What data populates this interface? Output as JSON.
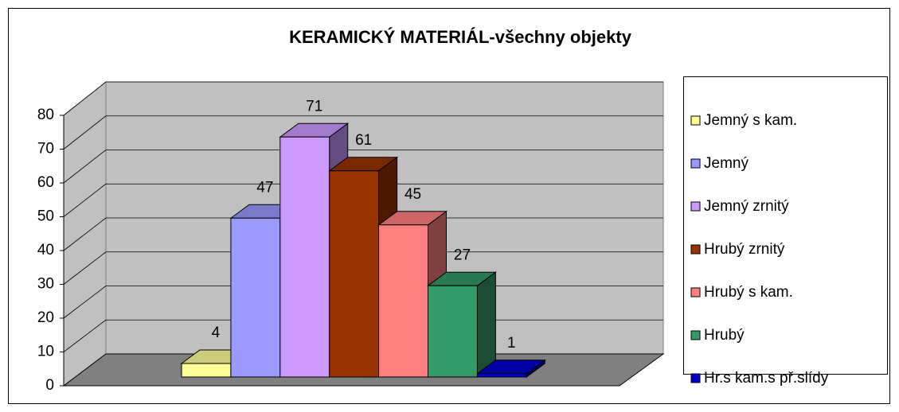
{
  "chart_data": {
    "type": "bar3d",
    "title": "KERAMICKÝ MATERIÁL-všechny objekty",
    "series": [
      {
        "name": "Jemný s kam.",
        "color": "#ffff99",
        "values": [
          4
        ]
      },
      {
        "name": "Jemný",
        "color": "#9999ff",
        "values": [
          47
        ]
      },
      {
        "name": "Jemný zrnitý",
        "color": "#cc99ff",
        "values": [
          71
        ]
      },
      {
        "name": "Hrubý zrnitý",
        "color": "#993300",
        "values": [
          61
        ]
      },
      {
        "name": "Hrubý s kam.",
        "color": "#ff8080",
        "values": [
          45
        ]
      },
      {
        "name": "Hrubý",
        "color": "#339966",
        "values": [
          27
        ]
      },
      {
        "name": "Hr.s kam.s př.slídy",
        "color": "#0000cc",
        "values": [
          1
        ]
      }
    ],
    "ylim": [
      0,
      80
    ],
    "yticks": [
      0,
      10,
      20,
      30,
      40,
      50,
      60,
      70,
      80
    ],
    "grid": true,
    "legend": "right"
  }
}
